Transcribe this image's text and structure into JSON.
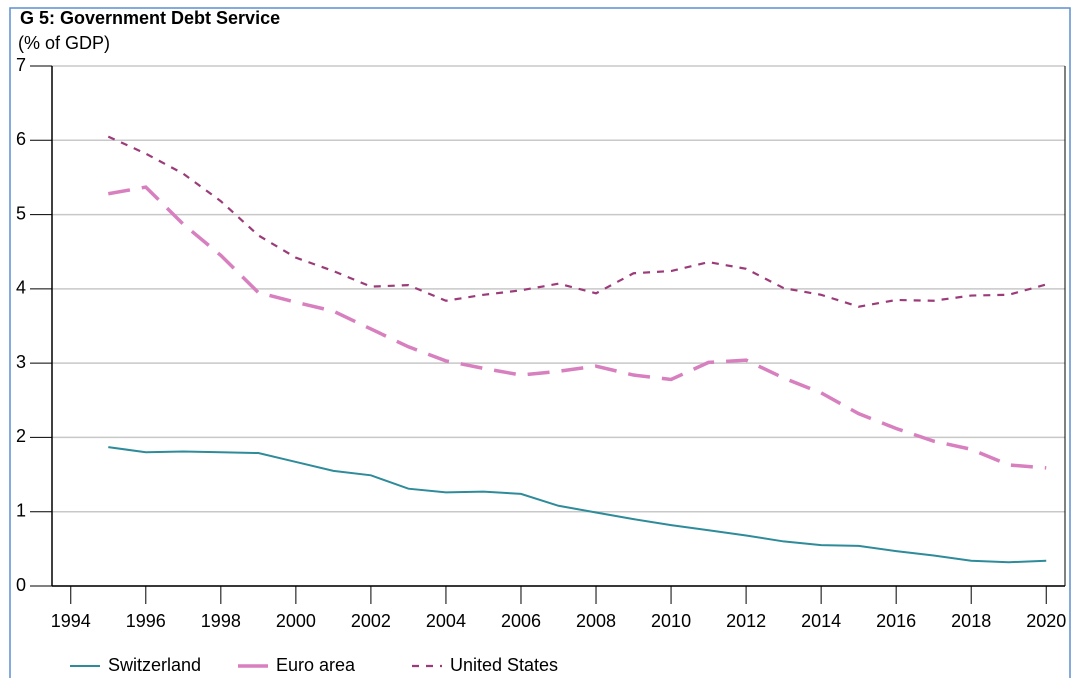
{
  "chart_data": {
    "type": "line",
    "title": "G 5: Government Debt Service",
    "subtitle": "(% of GDP)",
    "x": [
      1995,
      1996,
      1997,
      1998,
      1999,
      2000,
      2001,
      2002,
      2003,
      2004,
      2005,
      2006,
      2007,
      2008,
      2009,
      2010,
      2011,
      2012,
      2013,
      2014,
      2015,
      2016,
      2017,
      2018,
      2019,
      2020
    ],
    "series": [
      {
        "name": "Switzerland",
        "color": "#2e8b9a",
        "dash": "solid",
        "values": [
          1.87,
          1.8,
          1.81,
          1.8,
          1.79,
          1.67,
          1.55,
          1.49,
          1.31,
          1.26,
          1.27,
          1.24,
          1.08,
          0.99,
          0.9,
          0.82,
          0.75,
          0.68,
          0.6,
          0.55,
          0.54,
          0.47,
          0.41,
          0.34,
          0.32,
          0.34
        ]
      },
      {
        "name": "Euro area",
        "color": "#d77fbf",
        "dash": "long",
        "values": [
          5.28,
          5.37,
          4.87,
          4.45,
          3.95,
          3.82,
          3.7,
          3.46,
          3.22,
          3.03,
          2.93,
          2.84,
          2.89,
          2.96,
          2.84,
          2.78,
          3.01,
          3.04,
          2.8,
          2.6,
          2.32,
          2.12,
          1.95,
          1.84,
          1.63,
          1.59
        ]
      },
      {
        "name": "United States",
        "color": "#9c3b79",
        "dash": "short",
        "values": [
          6.05,
          5.82,
          5.55,
          5.18,
          4.72,
          4.42,
          4.24,
          4.03,
          4.05,
          3.84,
          3.92,
          3.98,
          4.07,
          3.94,
          4.21,
          4.24,
          4.36,
          4.27,
          4.01,
          3.92,
          3.76,
          3.85,
          3.84,
          3.91,
          3.92,
          4.06
        ]
      }
    ],
    "xlim": [
      1993.5,
      2020.5
    ],
    "xticks": [
      1994,
      1996,
      1998,
      2000,
      2002,
      2004,
      2006,
      2008,
      2010,
      2012,
      2014,
      2016,
      2018,
      2020
    ],
    "ylim": [
      0,
      7
    ],
    "yticks": [
      0,
      1,
      2,
      3,
      4,
      5,
      6,
      7
    ],
    "grid": true,
    "legend": "bottom"
  }
}
